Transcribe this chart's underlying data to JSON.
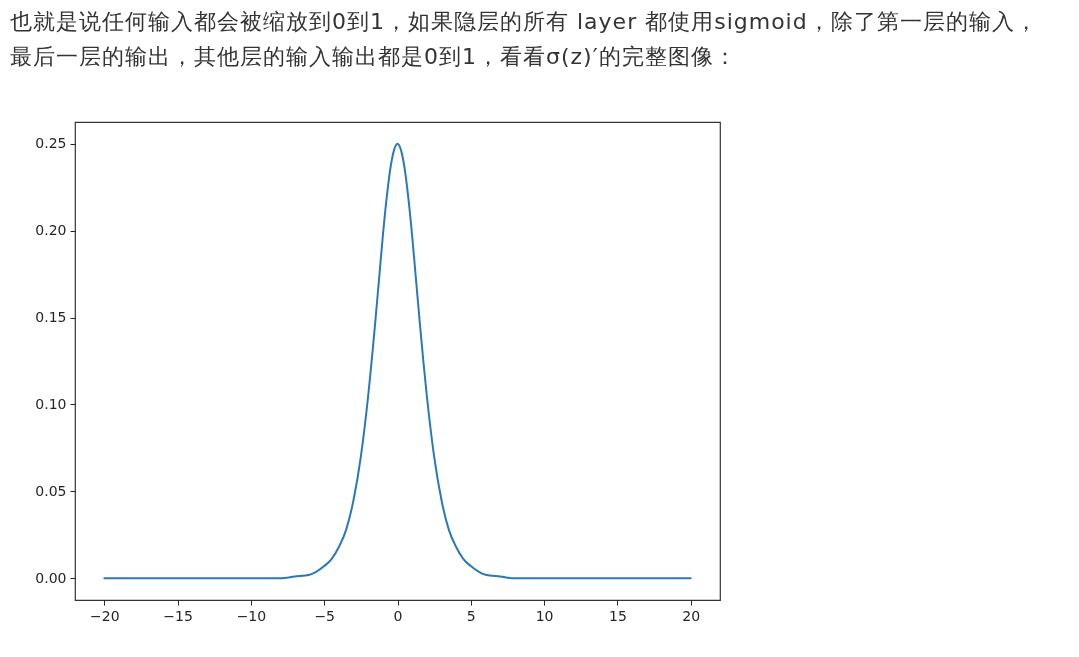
{
  "chart_data": {
    "type": "line",
    "title": "也就是说任何输入都会被缩放到0到1，如果隐层的所有 layer 都使用sigmoid，除了第一层的输入，最后一层的输出，其他层的输入输出都是0到1，看看σ(z)′的完整图像：",
    "x": [
      -20,
      -15,
      -10,
      -8,
      -7,
      -6,
      -5,
      -4.5,
      -4,
      -3.5,
      -3,
      -2.5,
      -2,
      -1.75,
      -1.5,
      -1.25,
      -1,
      -0.75,
      -0.5,
      -0.25,
      0,
      0.25,
      0.5,
      0.75,
      1,
      1.25,
      1.5,
      1.75,
      2,
      2.5,
      3,
      3.5,
      4,
      4.5,
      5,
      6,
      7,
      8,
      10,
      15,
      20
    ],
    "values": [
      0,
      0,
      0,
      0,
      0.001,
      0.002,
      0.007,
      0.011,
      0.018,
      0.028,
      0.045,
      0.07,
      0.105,
      0.126,
      0.149,
      0.173,
      0.197,
      0.218,
      0.235,
      0.246,
      0.25,
      0.246,
      0.235,
      0.218,
      0.197,
      0.173,
      0.149,
      0.126,
      0.105,
      0.07,
      0.045,
      0.028,
      0.018,
      0.011,
      0.007,
      0.002,
      0.001,
      0,
      0,
      0,
      0
    ],
    "color": "#2a78b8",
    "xlim": [
      -22,
      22
    ],
    "xticks": [
      {
        "value": -20,
        "label": "−20"
      },
      {
        "value": -15,
        "label": "−15"
      },
      {
        "value": -10,
        "label": "−10"
      },
      {
        "value": -5,
        "label": "−5"
      },
      0,
      5,
      10,
      15,
      20
    ],
    "ylim": [
      -0.0125,
      0.2625
    ],
    "yticks": [
      {
        "value": 0,
        "label": "0.00"
      },
      {
        "value": 0.05,
        "label": "0.05"
      },
      {
        "value": 0.1,
        "label": "0.10"
      },
      {
        "value": 0.15,
        "label": "0.15"
      },
      {
        "value": 0.2,
        "label": "0.20"
      },
      0.25
    ],
    "grid": false
  }
}
